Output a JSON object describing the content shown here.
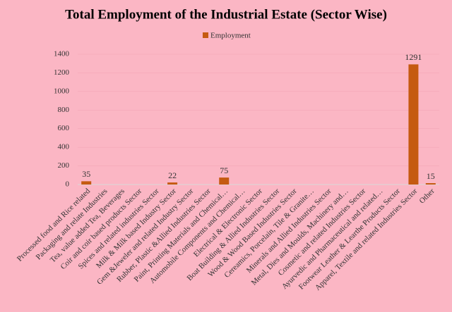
{
  "chart_data": {
    "type": "bar",
    "title": "Total Employment of the Industrial Estate (Sector Wise)",
    "categories": [
      "Processed food and Rice related",
      "Packaging and relate Industries",
      "Tea, value added Tea, Beverages",
      "Coir and coir based products Sector",
      "Spices and related industries Sector",
      "Milk & Milk based Industry Sector",
      "Gem &Jeweler and related Industry Sector",
      "Rubber, Plastic &Allied Industries Sector",
      "Paint, Printing Materials and Chemical…",
      "Automobile Components and Chemical…",
      "Electrical & Electronic Sector",
      "Boat Building & Allied Industries Sector",
      "Wood & Wood Based Industries Sector",
      "Cereamics, Porcelain, Tile & Granite…",
      "Minerals and Allied Industries Sector",
      "Metal, Dies and Moulds, Machinery and…",
      "Cosmetic and related Industries Sector",
      "Ayurvedic and Pharmaceutical and related…",
      "Footwear Leather & Learthe Products Sector",
      "Apparel, Textile and related Industries Sector",
      "Other"
    ],
    "series": [
      {
        "name": "Employment",
        "color": "#c55a11",
        "values": [
          35,
          null,
          null,
          null,
          null,
          22,
          null,
          null,
          75,
          null,
          null,
          null,
          null,
          null,
          null,
          null,
          null,
          null,
          null,
          1291,
          15
        ]
      }
    ],
    "ylim": [
      0,
      1400
    ],
    "yticks": [
      0,
      200,
      400,
      600,
      800,
      1000,
      1200,
      1400
    ],
    "legend": "top"
  }
}
